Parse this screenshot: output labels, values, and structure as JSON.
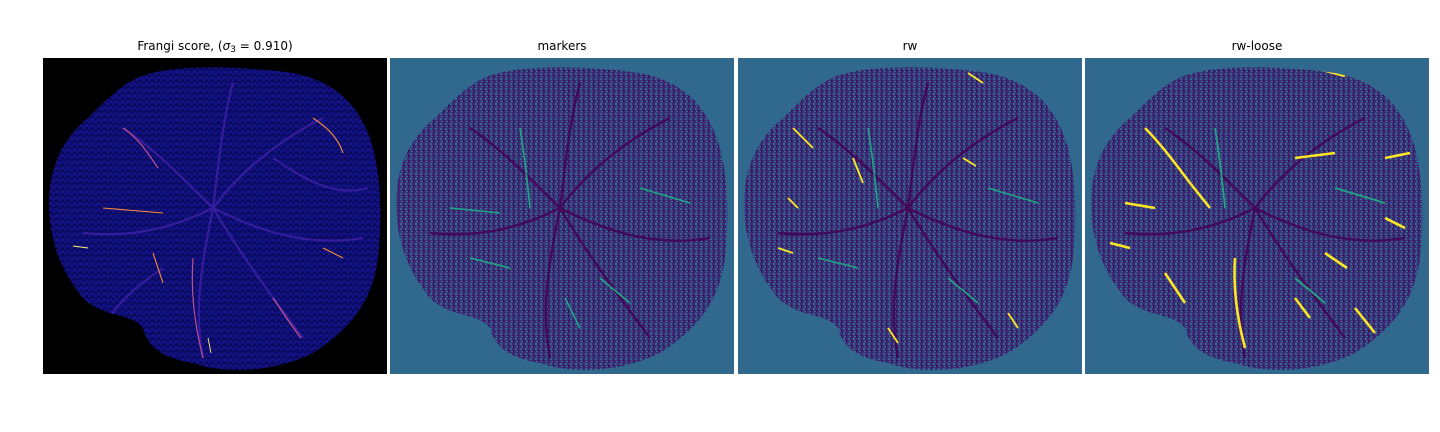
{
  "figure": {
    "panels": [
      {
        "title_prefix": "Frangi score, (",
        "title_symbol": "σ",
        "title_subscript": "3",
        "title_suffix": " = 0.910)",
        "colormap": "gnuplot2",
        "background_color": "#000000"
      },
      {
        "title": "markers",
        "colormap": "viridis",
        "background_color": "#31688e"
      },
      {
        "title": "rw",
        "colormap": "viridis",
        "background_color": "#31688e"
      },
      {
        "title": "rw-loose",
        "colormap": "viridis",
        "background_color": "#31688e"
      }
    ],
    "colors": {
      "frangi_low": "#0c0c7a",
      "frangi_mid": "#6a2bb8",
      "frangi_high": "#ff6a3a",
      "frangi_peak": "#ffef6a",
      "viridis_dark": "#440154",
      "viridis_mid": "#31688e",
      "viridis_teal": "#21a585",
      "viridis_yellow": "#fde725"
    }
  }
}
